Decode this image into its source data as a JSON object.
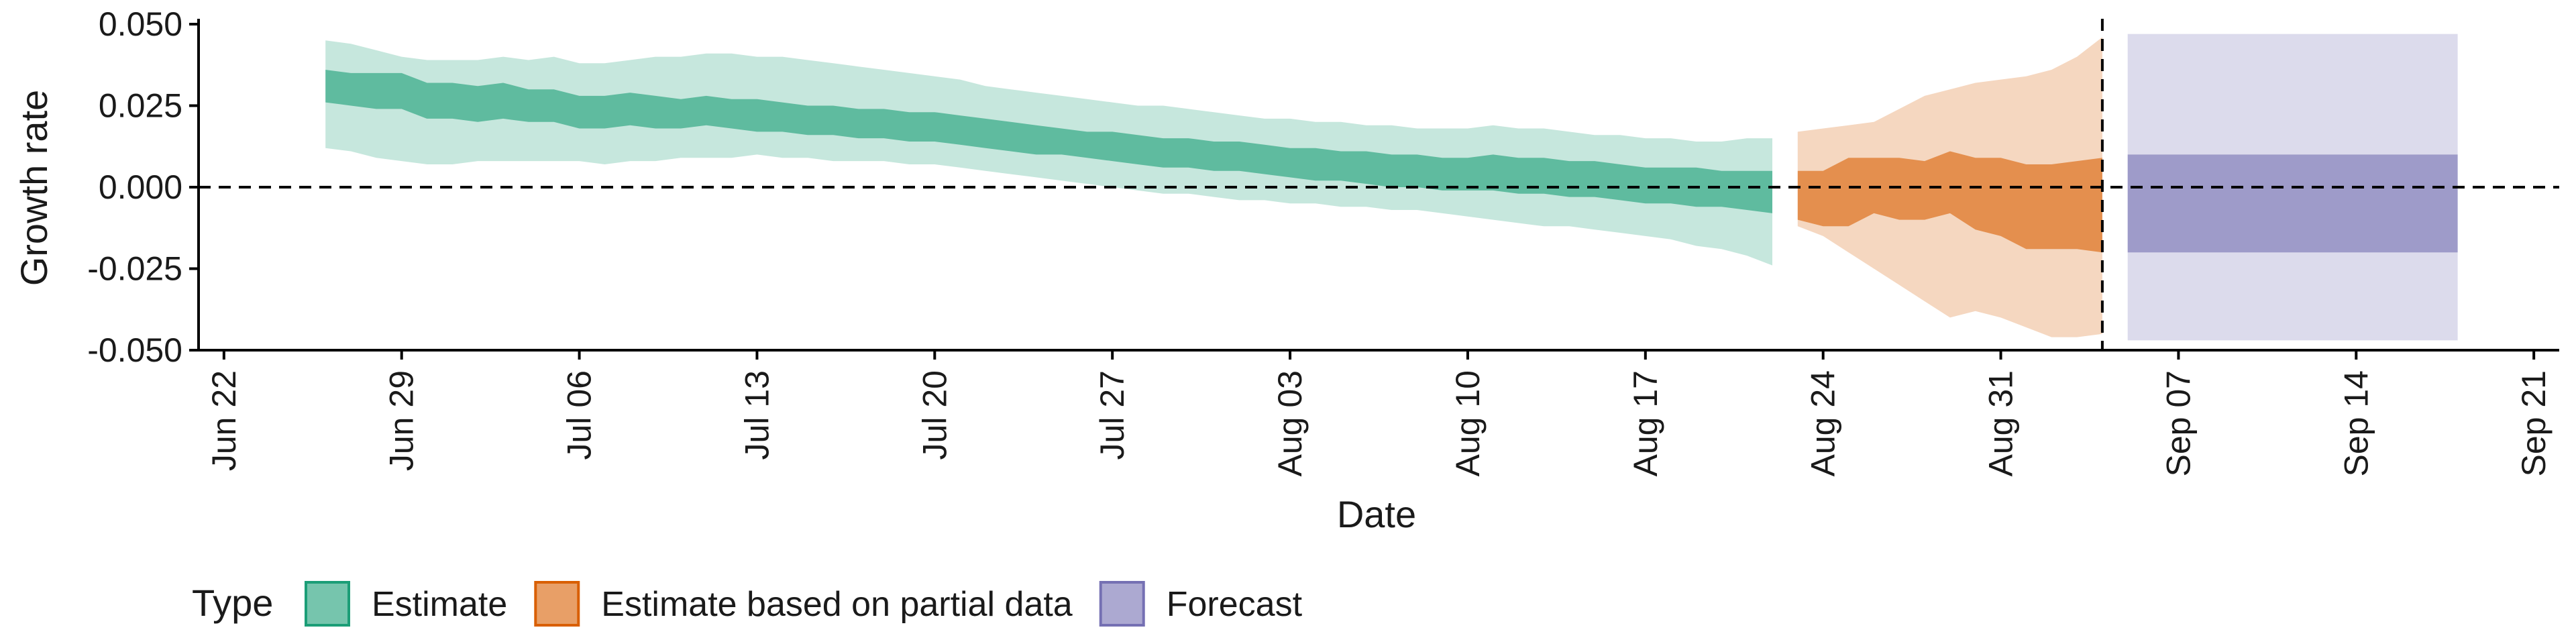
{
  "chart_data": {
    "type": "area",
    "xlabel": "Date",
    "ylabel": "Growth rate",
    "ylim": [
      -0.05,
      0.05
    ],
    "y_ticks": [
      "0.050",
      "0.025",
      "0.000",
      "-0.025",
      "-0.050"
    ],
    "y_tick_values": [
      0.05,
      0.025,
      0,
      -0.025,
      -0.05
    ],
    "xlim": [
      "2020-06-21",
      "2020-09-22"
    ],
    "x_ticks": [
      "Jun 22",
      "Jun 29",
      "Jul 06",
      "Jul 13",
      "Jul 20",
      "Jul 27",
      "Aug 03",
      "Aug 10",
      "Aug 17",
      "Aug 24",
      "Aug 31",
      "Sep 07",
      "Sep 14",
      "Sep 21"
    ],
    "x_tick_dates": [
      "2020-06-22",
      "2020-06-29",
      "2020-07-06",
      "2020-07-13",
      "2020-07-20",
      "2020-07-27",
      "2020-08-03",
      "2020-08-10",
      "2020-08-17",
      "2020-08-24",
      "2020-08-31",
      "2020-09-07",
      "2020-09-14",
      "2020-09-21"
    ],
    "reference_lines": [
      {
        "axis": "y",
        "value": 0,
        "style": "dashed"
      },
      {
        "axis": "x",
        "value": "2020-09-04",
        "style": "dashed"
      }
    ],
    "grid": false,
    "legend": {
      "title": "Type",
      "position": "bottom",
      "items": [
        {
          "label": "Estimate",
          "color": "#1b9e77"
        },
        {
          "label": "Estimate based on partial data",
          "color": "#d95f02"
        },
        {
          "label": "Forecast",
          "color": "#7570b3"
        }
      ]
    },
    "series": [
      {
        "name": "Estimate",
        "color": "#1b9e77",
        "x": [
          "2020-06-26",
          "2020-06-27",
          "2020-06-28",
          "2020-06-29",
          "2020-06-30",
          "2020-07-01",
          "2020-07-02",
          "2020-07-03",
          "2020-07-04",
          "2020-07-05",
          "2020-07-06",
          "2020-07-07",
          "2020-07-08",
          "2020-07-09",
          "2020-07-10",
          "2020-07-11",
          "2020-07-12",
          "2020-07-13",
          "2020-07-14",
          "2020-07-15",
          "2020-07-16",
          "2020-07-17",
          "2020-07-18",
          "2020-07-19",
          "2020-07-20",
          "2020-07-21",
          "2020-07-22",
          "2020-07-23",
          "2020-07-24",
          "2020-07-25",
          "2020-07-26",
          "2020-07-27",
          "2020-07-28",
          "2020-07-29",
          "2020-07-30",
          "2020-07-31",
          "2020-08-01",
          "2020-08-02",
          "2020-08-03",
          "2020-08-04",
          "2020-08-05",
          "2020-08-06",
          "2020-08-07",
          "2020-08-08",
          "2020-08-09",
          "2020-08-10",
          "2020-08-11",
          "2020-08-12",
          "2020-08-13",
          "2020-08-14",
          "2020-08-15",
          "2020-08-16",
          "2020-08-17",
          "2020-08-18",
          "2020-08-19",
          "2020-08-20",
          "2020-08-21",
          "2020-08-22"
        ],
        "lower_90": [
          0.012,
          0.011,
          0.009,
          0.008,
          0.007,
          0.007,
          0.008,
          0.008,
          0.008,
          0.008,
          0.008,
          0.007,
          0.008,
          0.008,
          0.009,
          0.009,
          0.009,
          0.01,
          0.009,
          0.009,
          0.008,
          0.008,
          0.008,
          0.007,
          0.007,
          0.006,
          0.005,
          0.004,
          0.003,
          0.002,
          0.001,
          0.0,
          -0.001,
          -0.002,
          -0.002,
          -0.003,
          -0.004,
          -0.004,
          -0.005,
          -0.005,
          -0.006,
          -0.006,
          -0.007,
          -0.007,
          -0.008,
          -0.009,
          -0.01,
          -0.011,
          -0.012,
          -0.012,
          -0.013,
          -0.014,
          -0.015,
          -0.016,
          -0.018,
          -0.019,
          -0.021,
          -0.024
        ],
        "lower_50": [
          0.026,
          0.025,
          0.024,
          0.024,
          0.021,
          0.021,
          0.02,
          0.021,
          0.02,
          0.02,
          0.018,
          0.018,
          0.019,
          0.018,
          0.018,
          0.019,
          0.018,
          0.017,
          0.017,
          0.016,
          0.016,
          0.015,
          0.015,
          0.014,
          0.014,
          0.013,
          0.012,
          0.011,
          0.01,
          0.01,
          0.009,
          0.008,
          0.007,
          0.006,
          0.006,
          0.005,
          0.005,
          0.004,
          0.003,
          0.002,
          0.002,
          0.001,
          0.0,
          0.0,
          -0.001,
          -0.001,
          -0.001,
          -0.002,
          -0.002,
          -0.003,
          -0.003,
          -0.004,
          -0.005,
          -0.005,
          -0.006,
          -0.006,
          -0.007,
          -0.008
        ],
        "upper_50": [
          0.036,
          0.035,
          0.035,
          0.035,
          0.032,
          0.032,
          0.031,
          0.032,
          0.03,
          0.03,
          0.028,
          0.028,
          0.029,
          0.028,
          0.027,
          0.028,
          0.027,
          0.027,
          0.026,
          0.025,
          0.025,
          0.024,
          0.024,
          0.023,
          0.023,
          0.022,
          0.021,
          0.02,
          0.019,
          0.018,
          0.017,
          0.017,
          0.016,
          0.015,
          0.015,
          0.014,
          0.014,
          0.013,
          0.012,
          0.012,
          0.011,
          0.011,
          0.01,
          0.01,
          0.009,
          0.009,
          0.01,
          0.009,
          0.009,
          0.008,
          0.008,
          0.007,
          0.006,
          0.006,
          0.006,
          0.005,
          0.005,
          0.005
        ],
        "upper_90": [
          0.045,
          0.044,
          0.042,
          0.04,
          0.039,
          0.039,
          0.039,
          0.04,
          0.039,
          0.04,
          0.038,
          0.038,
          0.039,
          0.04,
          0.04,
          0.041,
          0.041,
          0.04,
          0.04,
          0.039,
          0.038,
          0.037,
          0.036,
          0.035,
          0.034,
          0.033,
          0.031,
          0.03,
          0.029,
          0.028,
          0.027,
          0.026,
          0.025,
          0.025,
          0.024,
          0.023,
          0.022,
          0.021,
          0.021,
          0.02,
          0.02,
          0.019,
          0.019,
          0.018,
          0.018,
          0.018,
          0.019,
          0.018,
          0.018,
          0.017,
          0.016,
          0.016,
          0.015,
          0.015,
          0.014,
          0.014,
          0.015,
          0.015
        ]
      },
      {
        "name": "Estimate based on partial data",
        "color": "#d95f02",
        "x": [
          "2020-08-23",
          "2020-08-24",
          "2020-08-25",
          "2020-08-26",
          "2020-08-27",
          "2020-08-28",
          "2020-08-29",
          "2020-08-30",
          "2020-08-31",
          "2020-09-01",
          "2020-09-02",
          "2020-09-03",
          "2020-09-04"
        ],
        "lower_90": [
          -0.012,
          -0.015,
          -0.02,
          -0.025,
          -0.03,
          -0.035,
          -0.04,
          -0.038,
          -0.04,
          -0.043,
          -0.046,
          -0.046,
          -0.045
        ],
        "lower_50": [
          -0.01,
          -0.012,
          -0.012,
          -0.008,
          -0.01,
          -0.01,
          -0.008,
          -0.013,
          -0.015,
          -0.019,
          -0.019,
          -0.019,
          -0.02
        ],
        "upper_50": [
          0.005,
          0.005,
          0.009,
          0.009,
          0.009,
          0.008,
          0.011,
          0.009,
          0.009,
          0.007,
          0.007,
          0.008,
          0.009
        ],
        "upper_90": [
          0.017,
          0.018,
          0.019,
          0.02,
          0.024,
          0.028,
          0.03,
          0.032,
          0.033,
          0.034,
          0.036,
          0.04,
          0.046
        ]
      },
      {
        "name": "Forecast",
        "color": "#7570b3",
        "x": [
          "2020-09-05",
          "2020-09-18"
        ],
        "lower_90": [
          -0.047,
          -0.047
        ],
        "lower_50": [
          -0.02,
          -0.02
        ],
        "upper_50": [
          0.01,
          0.01
        ],
        "upper_90": [
          0.047,
          0.047
        ]
      }
    ]
  }
}
